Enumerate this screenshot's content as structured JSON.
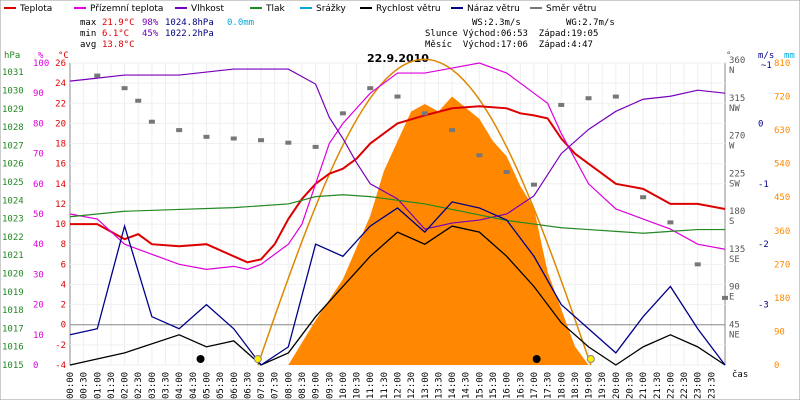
{
  "legend": [
    {
      "label": "Teplota",
      "color": "#dd0000"
    },
    {
      "label": "Přízemní teplota",
      "color": "#dd00dd"
    },
    {
      "label": "Vlhkost",
      "color": "#7700bb"
    },
    {
      "label": "Tlak",
      "color": "#228822"
    },
    {
      "label": "Srážky",
      "color": "#00aadd"
    },
    {
      "label": "Rychlost větru",
      "color": "#000000"
    },
    {
      "label": "Náraz větru",
      "color": "#000088"
    },
    {
      "label": "Směr větru",
      "color": "#777777"
    }
  ],
  "stats": {
    "max": {
      "label": "max",
      "temp": "21.9°C",
      "hum": "98%",
      "press": "1024.8hPa",
      "rain": "0.0mm"
    },
    "min": {
      "label": "min",
      "temp": "6.1°C",
      "hum": "45%",
      "press": "1022.2hPa"
    },
    "avg": {
      "label": "avg",
      "temp": "13.8°C"
    },
    "ws": "WS:2.3m/s",
    "wg": "WG:2.7m/s",
    "sun": "Slunce Východ:06:53  Západ:19:05",
    "moon": "Měsíc  Východ:17:06  Západ:4:47"
  },
  "date": "22.9.2010",
  "axes": {
    "hpa_unit": "hPa",
    "pct_unit": "%",
    "c_unit": "°C",
    "deg_unit": "°",
    "ms_unit": "m/s",
    "mm_unit": "mm",
    "time_unit": "čas",
    "hpa_ticks": [
      "1031",
      "1030",
      "1029",
      "1028",
      "1027",
      "1026",
      "1025",
      "1024",
      "1023",
      "1022",
      "1021",
      "1020",
      "1019",
      "1018",
      "1017",
      "1016",
      "1015"
    ],
    "pct_ticks": [
      "100",
      "90",
      "80",
      "70",
      "60",
      "50",
      "40",
      "30",
      "20",
      "10",
      "0"
    ],
    "c_ticks": [
      "26",
      "24",
      "22",
      "20",
      "18",
      "16",
      "14",
      "12",
      "10",
      "8",
      "6",
      "4",
      "2",
      "0",
      "-2",
      "-4"
    ],
    "dir_ticks": [
      {
        "deg": "360",
        "name": "N"
      },
      {
        "deg": "315",
        "name": "NW"
      },
      {
        "deg": "270",
        "name": "W"
      },
      {
        "deg": "225",
        "name": "SW"
      },
      {
        "deg": "180",
        "name": "S"
      },
      {
        "deg": "135",
        "name": "SE"
      },
      {
        "deg": "90",
        "name": "E"
      },
      {
        "deg": "45",
        "name": "NE"
      }
    ],
    "ms_top": "~1",
    "ms_ticks": [
      "-3",
      "-2",
      "-1",
      "0"
    ],
    "mm_ticks": [
      "810",
      "720",
      "630",
      "540",
      "450",
      "360",
      "270",
      "180",
      "90",
      "0"
    ],
    "time_ticks": [
      "00:00",
      "00:30",
      "01:00",
      "01:30",
      "02:00",
      "02:30",
      "03:00",
      "03:30",
      "04:00",
      "04:30",
      "05:00",
      "05:30",
      "06:00",
      "06:30",
      "07:00",
      "07:30",
      "08:00",
      "08:30",
      "09:00",
      "09:30",
      "10:00",
      "10:30",
      "11:00",
      "11:30",
      "12:00",
      "12:30",
      "13:00",
      "13:30",
      "14:00",
      "14:30",
      "15:00",
      "15:30",
      "16:00",
      "16:30",
      "17:00",
      "17:30",
      "18:00",
      "18:30",
      "19:00",
      "19:30",
      "20:00",
      "20:30",
      "21:00",
      "21:30",
      "22:00",
      "22:30",
      "23:00",
      "23:30"
    ]
  },
  "colors": {
    "solar": "#ff8800",
    "solar_max": "#dd8800"
  },
  "chart_data": {
    "type": "line",
    "x_unit": "hours",
    "series": [
      {
        "name": "Teplota",
        "unit": "°C",
        "x": [
          0,
          1,
          2,
          2.5,
          3,
          4,
          5,
          6,
          6.5,
          7,
          7.5,
          8,
          8.5,
          9,
          9.5,
          10,
          10.5,
          11,
          11.5,
          12,
          13,
          14,
          15,
          16,
          16.5,
          17,
          17.5,
          18,
          18.5,
          19,
          19.5,
          20,
          21,
          22,
          23,
          24
        ],
        "values": [
          10,
          10,
          8.5,
          9,
          8,
          7.8,
          8,
          6.8,
          6.2,
          6.5,
          8,
          10.5,
          12.5,
          14,
          15,
          15.5,
          16.5,
          18,
          19,
          20,
          20.8,
          21.5,
          21.7,
          21.5,
          21,
          20.8,
          20.5,
          18.5,
          17,
          16,
          15,
          14,
          13.5,
          12,
          12,
          11.5
        ]
      },
      {
        "name": "Přízemní teplota",
        "unit": "°C",
        "x": [
          0,
          1,
          2,
          3,
          4,
          5,
          6,
          6.5,
          7,
          7.5,
          8,
          8.5,
          9,
          9.5,
          10,
          11,
          12,
          13,
          14,
          15,
          16,
          17,
          17.5,
          18,
          19,
          20,
          21,
          22,
          23,
          24
        ],
        "values": [
          11,
          10.5,
          8,
          7,
          6,
          5.5,
          5.8,
          5.5,
          6,
          7,
          8,
          10,
          14,
          18,
          20,
          23,
          25,
          25,
          25.5,
          26,
          25,
          23,
          22,
          19,
          14,
          11.5,
          10.5,
          9.5,
          8,
          7.5
        ]
      },
      {
        "name": "Vlhkost",
        "unit": "%",
        "x": [
          0,
          1,
          2,
          3,
          4,
          5,
          6,
          7,
          8,
          9,
          9.5,
          10,
          10.5,
          11,
          12,
          13,
          14,
          15,
          16,
          17,
          18,
          19,
          20,
          21,
          22,
          23,
          24
        ],
        "values": [
          94,
          95,
          96,
          96,
          96,
          97,
          98,
          98,
          98,
          93,
          82,
          75,
          67,
          60,
          55,
          45,
          47,
          48,
          50,
          56,
          70,
          78,
          84,
          88,
          89,
          91,
          90
        ]
      },
      {
        "name": "Tlak",
        "unit": "hPa",
        "x": [
          0,
          2,
          4,
          6,
          8,
          9,
          10,
          11,
          12,
          13,
          14,
          15,
          16,
          17,
          18,
          19,
          20,
          21,
          22,
          23,
          24
        ],
        "values": [
          1023.1,
          1023.4,
          1023.5,
          1023.6,
          1023.8,
          1024.2,
          1024.3,
          1024.2,
          1024.0,
          1023.8,
          1023.5,
          1023.2,
          1022.9,
          1022.7,
          1022.5,
          1022.4,
          1022.3,
          1022.2,
          1022.3,
          1022.4,
          1022.4
        ]
      },
      {
        "name": "Rychlost větru",
        "unit": "m/s",
        "x": [
          0,
          2,
          4,
          5,
          6,
          7,
          8,
          9,
          10,
          11,
          12,
          13,
          14,
          15,
          16,
          17,
          18,
          19,
          20,
          21,
          22,
          23,
          24
        ],
        "values": [
          0,
          0.2,
          0.5,
          0.3,
          0.4,
          0,
          0.2,
          0.8,
          1.3,
          1.8,
          2.2,
          2,
          2.3,
          2.2,
          1.8,
          1.3,
          0.7,
          0.3,
          0,
          0.3,
          0.5,
          0.3,
          0
        ]
      },
      {
        "name": "Náraz větru",
        "unit": "m/s",
        "x": [
          0,
          1,
          2,
          3,
          4,
          5,
          6,
          7,
          8,
          9,
          10,
          11,
          12,
          13,
          14,
          15,
          16,
          17,
          18,
          19,
          20,
          21,
          22,
          23,
          24
        ],
        "values": [
          0.5,
          0.6,
          2.3,
          0.8,
          0.6,
          1,
          0.6,
          0,
          0.3,
          2,
          1.8,
          2.3,
          2.6,
          2.2,
          2.7,
          2.6,
          2.4,
          1.8,
          1,
          0.6,
          0.2,
          0.8,
          1.3,
          0.6,
          0
        ]
      },
      {
        "name": "Směr větru",
        "unit": "°",
        "x": [
          1,
          2,
          2.5,
          3,
          4,
          5,
          6,
          7,
          8,
          9,
          10,
          11,
          12,
          13,
          14,
          15,
          16,
          17,
          18,
          19,
          20,
          21,
          22,
          23,
          24
        ],
        "values": [
          345,
          330,
          315,
          290,
          280,
          272,
          270,
          268,
          265,
          260,
          300,
          330,
          320,
          300,
          280,
          250,
          230,
          215,
          310,
          318,
          320,
          200,
          170,
          120,
          80
        ]
      }
    ],
    "solar_radiation": {
      "unit": "W/m²",
      "x": [
        8,
        9,
        10,
        11,
        11.5,
        12,
        12.5,
        13,
        13.5,
        14,
        14.5,
        15,
        15.5,
        16,
        16.5,
        17,
        17.5,
        18,
        18.5,
        19
      ],
      "values": [
        0,
        120,
        230,
        400,
        520,
        600,
        680,
        700,
        680,
        720,
        690,
        660,
        600,
        560,
        480,
        420,
        250,
        150,
        50,
        0
      ],
      "theoretical_max": 820
    },
    "y_ranges": {
      "hpa": [
        1015,
        1031.5
      ],
      "pct": [
        0,
        100
      ],
      "c": [
        -4,
        26
      ],
      "deg": [
        0,
        360
      ],
      "ms": [
        -4,
        1
      ],
      "mm": [
        0,
        810
      ]
    }
  }
}
